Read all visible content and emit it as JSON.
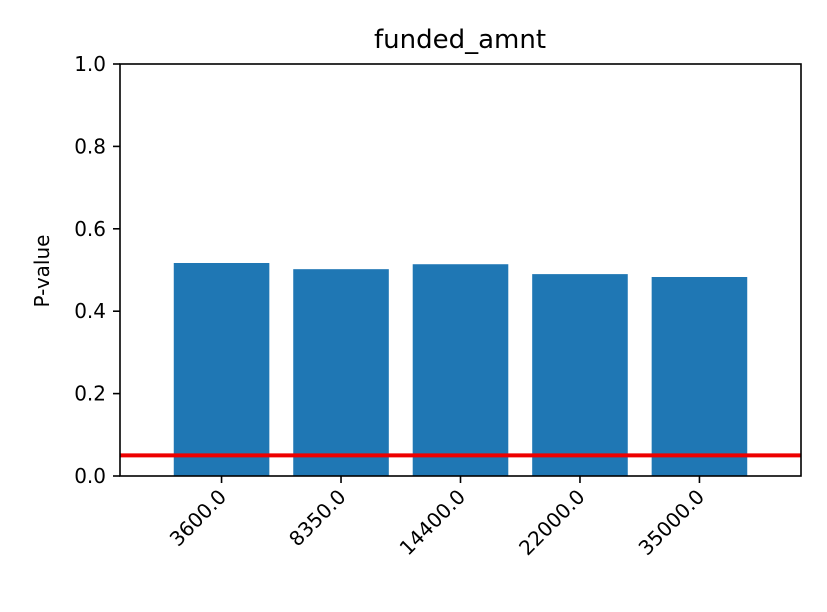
{
  "chart_data": {
    "type": "bar",
    "title": "funded_amnt",
    "xlabel": "",
    "ylabel": "P-value",
    "categories": [
      "3600.0",
      "8350.0",
      "14400.0",
      "22000.0",
      "35000.0"
    ],
    "values": [
      0.517,
      0.502,
      0.514,
      0.49,
      0.483
    ],
    "ylim": [
      0,
      1.0
    ],
    "yticks": [
      "0.0",
      "0.2",
      "0.4",
      "0.6",
      "0.8",
      "1.0"
    ],
    "threshold_line": 0.05,
    "grid": false,
    "colors": {
      "bar": "#1f77b4",
      "threshold": "#ee0000",
      "axis": "#000000"
    }
  }
}
